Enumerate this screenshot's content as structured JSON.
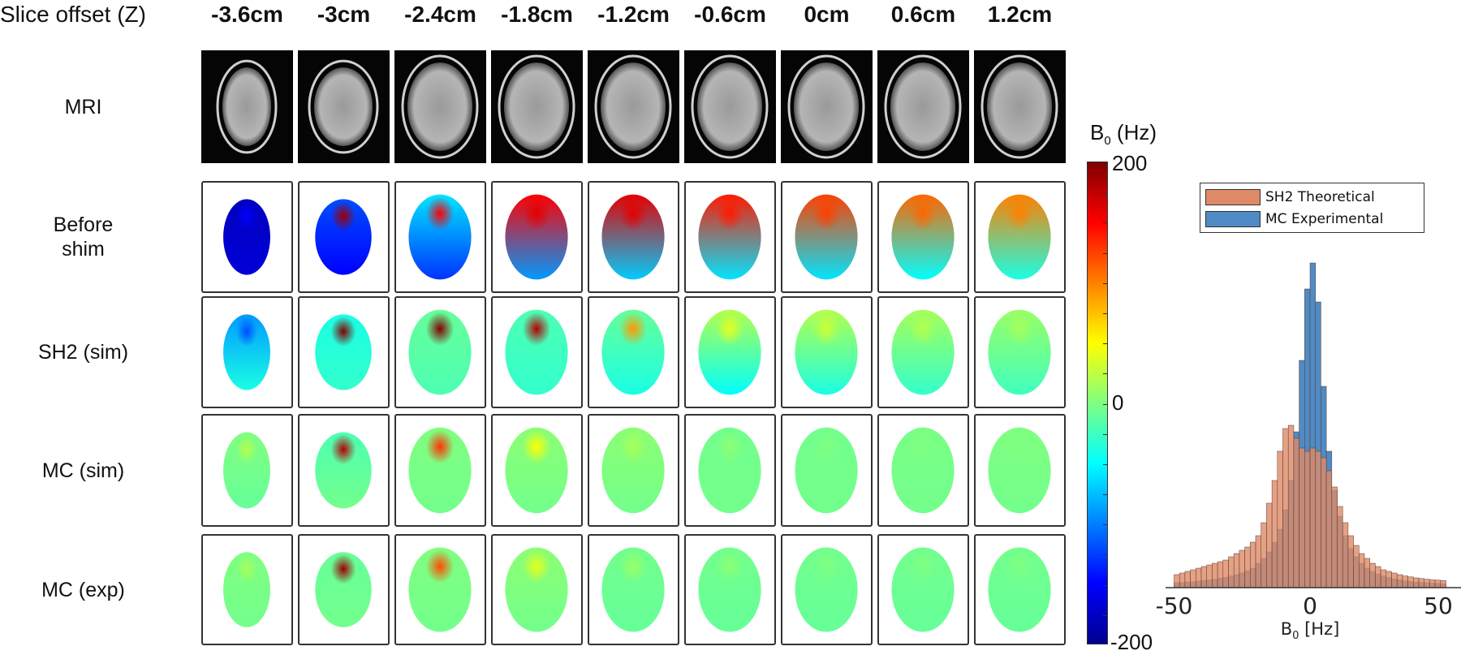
{
  "header": {
    "row_header_label": "Slice offset (Z)",
    "columns": [
      "-3.6cm",
      "-3cm",
      "-2.4cm",
      "-1.8cm",
      "-1.2cm",
      "-0.6cm",
      "0cm",
      "0.6cm",
      "1.2cm"
    ]
  },
  "rows": [
    {
      "label": "MRI",
      "type": "mri"
    },
    {
      "label": "Before\nshim",
      "type": "map",
      "cells": [
        {
          "top": -175,
          "bottom": -165,
          "hot": -150
        },
        {
          "top": -120,
          "bottom": -150,
          "hot": 190
        },
        {
          "top": -60,
          "bottom": -130,
          "hot": 150
        },
        {
          "top": 150,
          "bottom": -90,
          "hot": 160
        },
        {
          "top": 160,
          "bottom": -70,
          "hot": 160
        },
        {
          "top": 140,
          "bottom": -60,
          "hot": 140
        },
        {
          "top": 125,
          "bottom": -60,
          "hot": 125
        },
        {
          "top": 110,
          "bottom": -50,
          "hot": 110
        },
        {
          "top": 100,
          "bottom": -40,
          "hot": 100
        }
      ]
    },
    {
      "label": "SH2 (sim)",
      "type": "map",
      "cells": [
        {
          "top": -90,
          "bottom": -40,
          "hot": -120
        },
        {
          "top": -40,
          "bottom": -30,
          "hot": 200
        },
        {
          "top": -10,
          "bottom": -20,
          "hot": 200
        },
        {
          "top": -20,
          "bottom": -30,
          "hot": 180
        },
        {
          "top": -10,
          "bottom": -40,
          "hot": 90
        },
        {
          "top": 20,
          "bottom": -50,
          "hot": 40
        },
        {
          "top": 20,
          "bottom": -40,
          "hot": 30
        },
        {
          "top": 15,
          "bottom": -30,
          "hot": 20
        },
        {
          "top": 10,
          "bottom": -25,
          "hot": 15
        }
      ]
    },
    {
      "label": "MC (sim)",
      "type": "map",
      "cells": [
        {
          "top": 0,
          "bottom": -10,
          "hot": 20
        },
        {
          "top": -20,
          "bottom": -5,
          "hot": 180
        },
        {
          "top": 0,
          "bottom": -5,
          "hot": 130
        },
        {
          "top": 5,
          "bottom": -5,
          "hot": 50
        },
        {
          "top": 5,
          "bottom": -5,
          "hot": 15
        },
        {
          "top": -5,
          "bottom": -5,
          "hot": 5
        },
        {
          "top": -5,
          "bottom": -5,
          "hot": 0
        },
        {
          "top": -2,
          "bottom": -5,
          "hot": 0
        },
        {
          "top": 0,
          "bottom": -5,
          "hot": 0
        }
      ]
    },
    {
      "label": "MC (exp)",
      "type": "map",
      "cells": [
        {
          "top": 0,
          "bottom": -5,
          "hot": 15
        },
        {
          "top": -10,
          "bottom": -5,
          "hot": 190
        },
        {
          "top": 0,
          "bottom": -5,
          "hot": 120
        },
        {
          "top": 5,
          "bottom": -5,
          "hot": 40
        },
        {
          "top": -5,
          "bottom": -10,
          "hot": 10
        },
        {
          "top": -5,
          "bottom": -10,
          "hot": 5
        },
        {
          "top": -5,
          "bottom": -10,
          "hot": 0
        },
        {
          "top": -5,
          "bottom": -10,
          "hot": 0
        },
        {
          "top": -5,
          "bottom": -10,
          "hot": 0
        }
      ]
    }
  ],
  "colorbar": {
    "title": "B",
    "title_sub": "0",
    "title_unit": " (Hz)",
    "max_label": "200",
    "mid_label": "0",
    "min_label": "-200",
    "range": [
      -200,
      200
    ],
    "colormap": "jet"
  },
  "chart_data": {
    "type": "bar",
    "subtype": "overlaid histogram",
    "xlabel": "B",
    "xlabel_sub": "0",
    "xlabel_unit": " [Hz]",
    "xlim": [
      -50,
      50
    ],
    "xticks": [
      "-50",
      "0",
      "50"
    ],
    "legend_position": "top-right",
    "bin_centers": [
      -49,
      -47,
      -45,
      -43,
      -41,
      -39,
      -37,
      -35,
      -33,
      -31,
      -29,
      -27,
      -25,
      -23,
      -21,
      -19,
      -17,
      -15,
      -13,
      -11,
      -9,
      -7,
      -5,
      -3,
      -1,
      1,
      3,
      5,
      7,
      9,
      11,
      13,
      15,
      17,
      19,
      21,
      23,
      25,
      27,
      29,
      31,
      33,
      35,
      37,
      39,
      41,
      43,
      45,
      47,
      49
    ],
    "series": [
      {
        "name": "MC Experimental",
        "color": "#4F8BC4",
        "values": [
          1.5,
          1.6,
          1.7,
          1.8,
          2,
          2.2,
          2.4,
          2.6,
          2.9,
          3.2,
          3.6,
          4,
          4.5,
          5.2,
          6,
          7.5,
          9,
          11,
          14,
          18,
          24,
          33,
          48,
          70,
          92,
          100,
          88,
          62,
          42,
          30,
          22,
          16,
          12,
          9.5,
          7.5,
          6,
          5,
          4.2,
          3.6,
          3.1,
          2.7,
          2.4,
          2.1,
          1.9,
          1.7,
          1.6,
          1.5,
          1.4,
          1.3,
          1.2
        ]
      },
      {
        "name": "SH2 Theoretical",
        "color": "#DE8A66",
        "values": [
          4,
          4.5,
          5,
          5.5,
          6,
          6.5,
          7,
          7.5,
          8,
          8.5,
          9.5,
          10.5,
          11.5,
          12.5,
          14,
          16,
          20,
          26,
          33,
          42,
          49,
          50,
          46,
          43,
          42,
          43,
          42,
          40,
          36,
          31,
          25,
          20,
          16,
          13,
          10.5,
          9,
          7.5,
          6.5,
          5.5,
          5,
          4.5,
          4,
          3.6,
          3.3,
          3,
          2.8,
          2.6,
          2.4,
          2.3,
          2.2
        ]
      }
    ]
  },
  "legend": {
    "items": [
      {
        "label": "SH2 Theoretical",
        "color": "#DE8A66"
      },
      {
        "label": "MC Experimental",
        "color": "#4F8BC4"
      }
    ]
  }
}
